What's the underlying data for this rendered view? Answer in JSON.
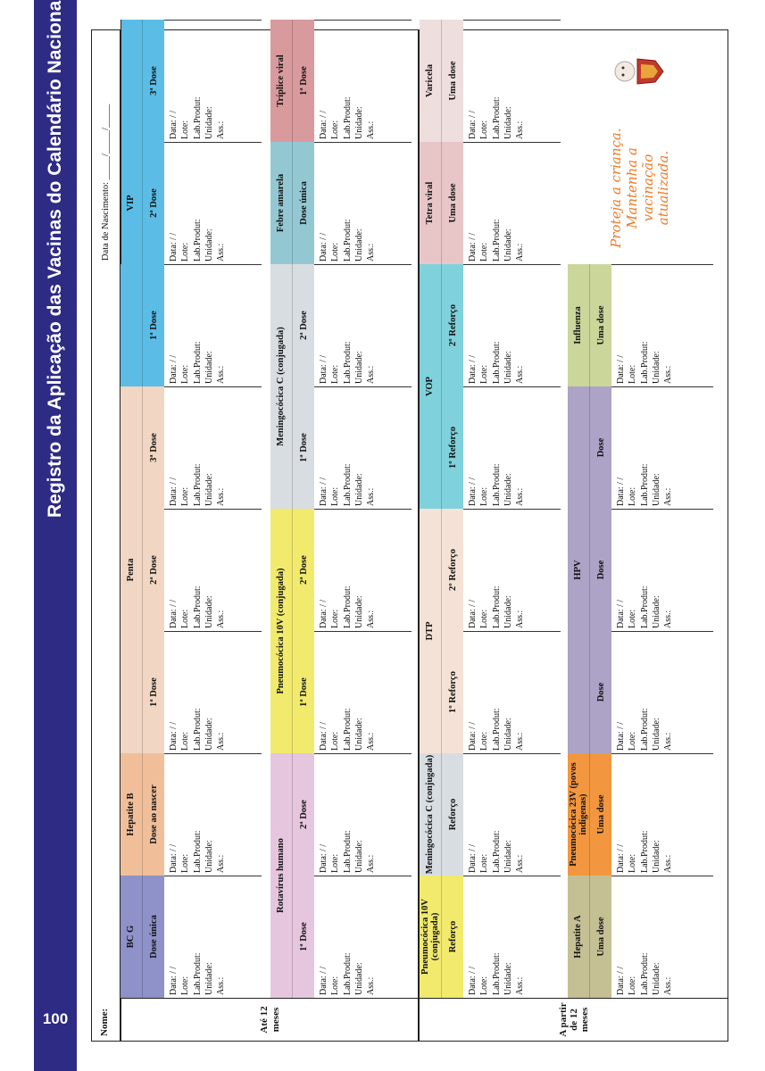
{
  "page": {
    "title": "Registro da Aplicação das Vacinas do Calendário Nacional",
    "number": "100"
  },
  "form": {
    "name_label": "Nome:",
    "birth_label": "Data de Nascimento:",
    "birth_blank": "_____/_____/_____"
  },
  "age_groups": [
    "Até 12 meses",
    "A partir de 12 meses"
  ],
  "record_fields": [
    "Data:     /     /",
    "Lote:",
    "Lab.Produt:",
    "Unidade:",
    "Ass.:"
  ],
  "record_fields_short": [
    "Data:     /     /",
    "Lote:",
    "Lab.Produt:",
    "Unidade:"
  ],
  "vaccines": {
    "bcg": {
      "name": "BC G",
      "dose": "Dose única"
    },
    "hepb": {
      "name": "Hepatite B",
      "dose": "Dose ao nascer"
    },
    "penta": {
      "name": "Penta",
      "doses": [
        "1ª Dose",
        "2ª Dose",
        "3ª Dose"
      ]
    },
    "vip": {
      "name": "VIP",
      "doses": [
        "1ª Dose",
        "2ª Dose",
        "3ª Dose"
      ]
    },
    "rota": {
      "name": "Rotavírus humano",
      "doses": [
        "1ª Dose",
        "2ª Dose"
      ]
    },
    "pneumo10": {
      "name": "Pneumocócica 10V (conjugada)",
      "doses": [
        "1ª Dose",
        "2ª Dose"
      ]
    },
    "meningo": {
      "name": "Meningocócica C (conjugada)",
      "doses": [
        "1ª Dose",
        "2ª Dose"
      ]
    },
    "febre": {
      "name": "Febre amarela",
      "dose": "Dose única"
    },
    "triplice": {
      "name": "Tríplice viral",
      "dose": "1ª Dose"
    },
    "pneumo10r": {
      "name": "Pneumocócica 10V (conjugada)",
      "dose": "Reforço"
    },
    "meningor": {
      "name": "Meningocócica C (conjugada)",
      "dose": "Reforço"
    },
    "dtp": {
      "name": "DTP",
      "doses": [
        "1º Reforço",
        "2º Reforço"
      ]
    },
    "vop": {
      "name": "VOP",
      "doses": [
        "1º Reforço",
        "2º Reforço"
      ]
    },
    "tetra": {
      "name": "Tetra viral",
      "dose": "Uma dose"
    },
    "varicela": {
      "name": "Varicela",
      "dose": "Uma dose"
    },
    "hepa": {
      "name": "Hepatite A",
      "dose": "Uma dose"
    },
    "pneumo23": {
      "name": "Pneumocócica 23V (povos indígenas)",
      "dose": "Uma dose"
    },
    "hpv": {
      "name": "HPV",
      "doses": [
        "Dose",
        "Dose",
        "Dose"
      ]
    },
    "influenza": {
      "name": "Influenza",
      "dose": "Uma dose"
    }
  },
  "motto": "Proteja a criança. Mantenha a vacinação atualizada.",
  "colors": {
    "band": "#2d2b83",
    "motto": "#f07a26",
    "bcg": "#8f91c9",
    "hepb": "#f0bf9a",
    "penta": "#f1d7c3",
    "vip": "#5bbde6",
    "rota": "#e6c6de",
    "pneumo10": "#f1ea6d",
    "meningo": "#d8dde2",
    "febre": "#93c8d3",
    "triplice": "#d99a9d",
    "dtp": "#f5e2d6",
    "vop": "#7fd1dc",
    "tetra": "#e8c6c8",
    "varicela": "#efdede",
    "hepa": "#c5bf94",
    "pneumo23": "#f2973f",
    "hpv": "#ada3c6",
    "influenza": "#cbd69b"
  }
}
